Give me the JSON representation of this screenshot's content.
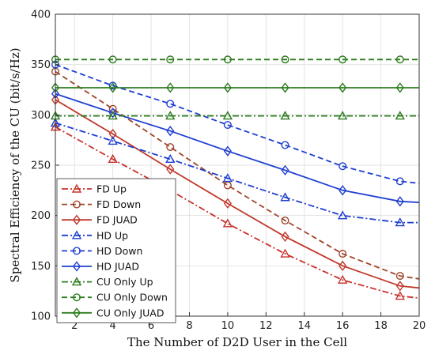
{
  "chart_data": {
    "type": "line",
    "xlabel": "The Number of D2D User in the Cell",
    "ylabel": "Spectral Efficiency of the CU (bit/s/Hz)",
    "xlim": [
      1,
      20
    ],
    "ylim": [
      100,
      400
    ],
    "xticks": [
      2,
      4,
      6,
      8,
      10,
      12,
      14,
      16,
      18,
      20
    ],
    "yticks": [
      100,
      150,
      200,
      250,
      300,
      350,
      400
    ],
    "grid": true,
    "legend_position": "bottom-left",
    "series": [
      {
        "name": "FD Up",
        "color": "#c8322b",
        "dash": "dashdot",
        "marker": "triangle",
        "x": [
          1,
          4,
          7,
          10,
          13,
          16,
          19,
          20
        ],
        "y": [
          288,
          256,
          225,
          192,
          162,
          136,
          120,
          118
        ]
      },
      {
        "name": "FD Down",
        "color": "#a0452a",
        "dash": "dashed",
        "marker": "circle",
        "x": [
          1,
          4,
          7,
          10,
          13,
          16,
          19,
          20
        ],
        "y": [
          343,
          306,
          268,
          230,
          195,
          162,
          140,
          137
        ]
      },
      {
        "name": "FD JUAD",
        "color": "#c0392b",
        "dash": "solid",
        "marker": "diamond",
        "x": [
          1,
          4,
          7,
          10,
          13,
          16,
          19,
          20
        ],
        "y": [
          315,
          281,
          246,
          212,
          179,
          150,
          130,
          128
        ]
      },
      {
        "name": "HD Up",
        "color": "#1f3fd1",
        "dash": "dashdot",
        "marker": "triangle",
        "x": [
          1,
          4,
          7,
          10,
          13,
          16,
          19,
          20
        ],
        "y": [
          292,
          274,
          256,
          237,
          218,
          200,
          193,
          193
        ]
      },
      {
        "name": "HD Down",
        "color": "#1f3fd1",
        "dash": "dashed",
        "marker": "circle",
        "x": [
          1,
          4,
          7,
          10,
          13,
          16,
          19,
          20
        ],
        "y": [
          350,
          329,
          311,
          290,
          270,
          249,
          234,
          232
        ]
      },
      {
        "name": "HD JUAD",
        "color": "#1f3fd1",
        "dash": "solid",
        "marker": "diamond",
        "x": [
          1,
          4,
          7,
          10,
          13,
          16,
          19,
          20
        ],
        "y": [
          321,
          302,
          284,
          264,
          245,
          225,
          214,
          213
        ]
      },
      {
        "name": "CU Only Up",
        "color": "#2e7d1f",
        "dash": "dashdot",
        "marker": "triangle",
        "x": [
          1,
          4,
          7,
          10,
          13,
          16,
          19,
          20
        ],
        "y": [
          299,
          299,
          299,
          299,
          299,
          299,
          299,
          299
        ]
      },
      {
        "name": "CU Only Down",
        "color": "#2e7d1f",
        "dash": "dashed",
        "marker": "circle",
        "x": [
          1,
          4,
          7,
          10,
          13,
          16,
          19,
          20
        ],
        "y": [
          355,
          355,
          355,
          355,
          355,
          355,
          355,
          355
        ]
      },
      {
        "name": "CU Only JUAD",
        "color": "#2e7d1f",
        "dash": "solid",
        "marker": "diamond",
        "x": [
          1,
          4,
          7,
          10,
          13,
          16,
          19,
          20
        ],
        "y": [
          327,
          327,
          327,
          327,
          327,
          327,
          327,
          327
        ]
      }
    ]
  }
}
